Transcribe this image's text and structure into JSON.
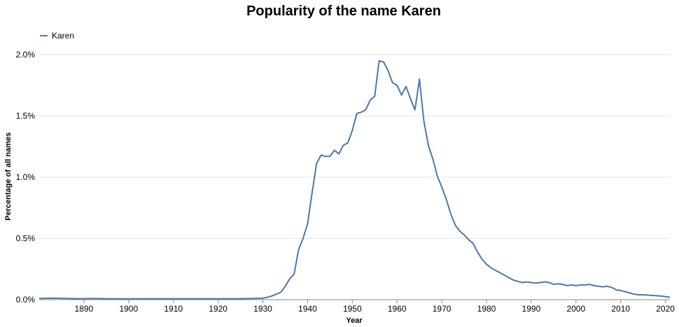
{
  "chart_data": {
    "type": "line",
    "title": "Popularity of the name Karen",
    "xlabel": "Year",
    "ylabel": "Percentage of all names",
    "xlim": [
      1880,
      2021
    ],
    "ylim": [
      0,
      2.0
    ],
    "x_ticks": [
      1890,
      1900,
      1910,
      1920,
      1930,
      1940,
      1950,
      1960,
      1970,
      1980,
      1990,
      2000,
      2010,
      2020
    ],
    "y_ticks": [
      {
        "value": 0.0,
        "label": "0.0%"
      },
      {
        "value": 0.5,
        "label": "0.5%"
      },
      {
        "value": 1.0,
        "label": "1.0%"
      },
      {
        "value": 1.5,
        "label": "1.5%"
      },
      {
        "value": 2.0,
        "label": "2.0%"
      }
    ],
    "grid": true,
    "legend_position": "top-left",
    "color": "#4c78a8",
    "series": [
      {
        "name": "Karen",
        "x": [
          1880,
          1883,
          1886,
          1889,
          1892,
          1895,
          1898,
          1901,
          1904,
          1907,
          1910,
          1913,
          1916,
          1919,
          1922,
          1925,
          1928,
          1930,
          1931,
          1932,
          1933,
          1934,
          1935,
          1936,
          1937,
          1938,
          1939,
          1940,
          1941,
          1942,
          1943,
          1944,
          1945,
          1946,
          1947,
          1948,
          1949,
          1950,
          1951,
          1952,
          1953,
          1954,
          1955,
          1956,
          1957,
          1958,
          1959,
          1960,
          1961,
          1962,
          1963,
          1964,
          1965,
          1966,
          1967,
          1968,
          1969,
          1970,
          1971,
          1972,
          1973,
          1974,
          1975,
          1976,
          1977,
          1978,
          1979,
          1980,
          1981,
          1982,
          1983,
          1984,
          1985,
          1986,
          1987,
          1988,
          1989,
          1990,
          1991,
          1992,
          1993,
          1994,
          1995,
          1996,
          1997,
          1998,
          1999,
          2000,
          2001,
          2002,
          2003,
          2004,
          2005,
          2006,
          2007,
          2008,
          2009,
          2010,
          2011,
          2012,
          2013,
          2014,
          2015,
          2016,
          2017,
          2018,
          2019,
          2020,
          2021
        ],
        "values": [
          0.01,
          0.012,
          0.01,
          0.008,
          0.01,
          0.008,
          0.007,
          0.007,
          0.008,
          0.008,
          0.008,
          0.008,
          0.008,
          0.008,
          0.008,
          0.008,
          0.01,
          0.012,
          0.02,
          0.03,
          0.045,
          0.06,
          0.11,
          0.17,
          0.21,
          0.41,
          0.5,
          0.62,
          0.87,
          1.11,
          1.18,
          1.17,
          1.17,
          1.22,
          1.19,
          1.26,
          1.28,
          1.38,
          1.52,
          1.53,
          1.55,
          1.63,
          1.66,
          1.95,
          1.94,
          1.87,
          1.77,
          1.75,
          1.67,
          1.74,
          1.64,
          1.55,
          1.8,
          1.46,
          1.26,
          1.15,
          1.01,
          0.92,
          0.82,
          0.7,
          0.61,
          0.56,
          0.53,
          0.49,
          0.46,
          0.39,
          0.33,
          0.29,
          0.26,
          0.24,
          0.22,
          0.2,
          0.18,
          0.16,
          0.15,
          0.14,
          0.145,
          0.14,
          0.135,
          0.14,
          0.145,
          0.14,
          0.125,
          0.13,
          0.125,
          0.115,
          0.12,
          0.115,
          0.12,
          0.12,
          0.125,
          0.115,
          0.11,
          0.105,
          0.11,
          0.1,
          0.08,
          0.075,
          0.065,
          0.055,
          0.045,
          0.04,
          0.04,
          0.038,
          0.035,
          0.032,
          0.03,
          0.025,
          0.02
        ]
      }
    ]
  }
}
